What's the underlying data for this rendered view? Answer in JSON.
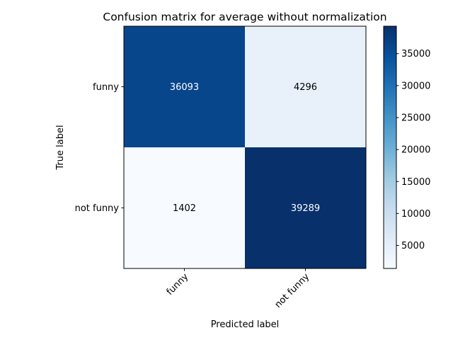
{
  "chart_data": {
    "type": "heatmap",
    "title": "Confusion matrix for average without normalization",
    "xlabel": "Predicted label",
    "ylabel": "True label",
    "x_categories": [
      "funny",
      "not funny"
    ],
    "y_categories": [
      "funny",
      "not funny"
    ],
    "matrix": [
      [
        36093,
        4296
      ],
      [
        1402,
        39289
      ]
    ],
    "colormap": "Blues",
    "color_range": [
      1402,
      39289
    ],
    "colors": {
      "low": "#f7fbff",
      "high": "#08306b"
    },
    "colorbar_ticks": [
      5000,
      10000,
      15000,
      20000,
      25000,
      30000,
      35000
    ],
    "colorbar_tick_labels": [
      "5000",
      "10000",
      "15000",
      "20000",
      "25000",
      "30000",
      "35000"
    ],
    "x_tick_rotation_deg": 45,
    "grid": false
  }
}
